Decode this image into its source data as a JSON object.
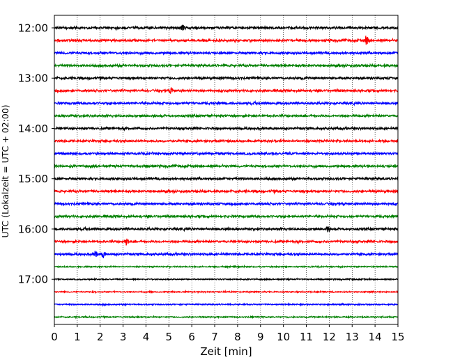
{
  "chart_data": {
    "type": "line",
    "title": "",
    "xlabel": "Zeit  [min]",
    "ylabel": "UTC (Lokalzeit = UTC + 02:00)",
    "xlim": [
      0,
      15
    ],
    "x_ticks": [
      "0",
      "1",
      "2",
      "3",
      "4",
      "5",
      "6",
      "7",
      "8",
      "9",
      "10",
      "11",
      "12",
      "13",
      "14",
      "15"
    ],
    "y_ticks": [
      "12:00",
      "13:00",
      "14:00",
      "15:00",
      "16:00",
      "17:00"
    ],
    "grid": "vertical dotted at each minute",
    "colors": [
      "#000000",
      "#ff0000",
      "#0000ff",
      "#008000"
    ],
    "trace_interval_min": 15,
    "traces": [
      {
        "start": "12:00",
        "color": "#000000",
        "events": [
          {
            "t": 5.6,
            "amp": 1.2
          }
        ]
      },
      {
        "start": "12:15",
        "color": "#ff0000",
        "events": [
          {
            "t": 13.65,
            "amp": 2.6
          }
        ]
      },
      {
        "start": "12:30",
        "color": "#0000ff",
        "events": []
      },
      {
        "start": "12:45",
        "color": "#008000",
        "events": []
      },
      {
        "start": "13:00",
        "color": "#000000",
        "events": []
      },
      {
        "start": "13:15",
        "color": "#ff0000",
        "events": [
          {
            "t": 5.1,
            "amp": 1.3
          }
        ]
      },
      {
        "start": "13:30",
        "color": "#0000ff",
        "events": []
      },
      {
        "start": "13:45",
        "color": "#008000",
        "events": []
      },
      {
        "start": "14:00",
        "color": "#000000",
        "events": []
      },
      {
        "start": "14:15",
        "color": "#ff0000",
        "events": []
      },
      {
        "start": "14:30",
        "color": "#0000ff",
        "events": []
      },
      {
        "start": "14:45",
        "color": "#008000",
        "events": []
      },
      {
        "start": "15:00",
        "color": "#000000",
        "events": []
      },
      {
        "start": "15:15",
        "color": "#ff0000",
        "events": []
      },
      {
        "start": "15:30",
        "color": "#0000ff",
        "events": []
      },
      {
        "start": "15:45",
        "color": "#008000",
        "events": []
      },
      {
        "start": "16:00",
        "color": "#000000",
        "events": [
          {
            "t": 11.95,
            "amp": 1.4
          }
        ]
      },
      {
        "start": "16:15",
        "color": "#ff0000",
        "events": [
          {
            "t": 3.15,
            "amp": 1.5
          }
        ]
      },
      {
        "start": "16:30",
        "color": "#0000ff",
        "events": [
          {
            "t": 1.8,
            "amp": 1.4
          },
          {
            "t": 2.15,
            "amp": 1.6
          }
        ]
      },
      {
        "start": "16:45",
        "color": "#008000",
        "events": []
      },
      {
        "start": "17:00",
        "color": "#000000",
        "events": []
      },
      {
        "start": "17:15",
        "color": "#ff0000",
        "events": []
      },
      {
        "start": "17:30",
        "color": "#0000ff",
        "events": []
      },
      {
        "start": "17:45",
        "color": "#008000",
        "events": []
      }
    ]
  }
}
